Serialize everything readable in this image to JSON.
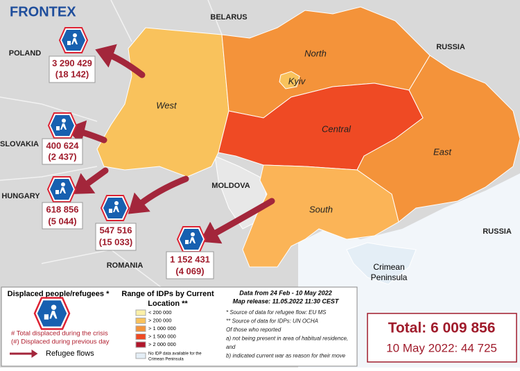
{
  "header": {
    "logo": "FRONTEX"
  },
  "countries": [
    "BELARUS",
    "RUSSIA",
    "POLAND",
    "SLOVAKIA",
    "HUNGARY",
    "MOLDOVA",
    "ROMANIA",
    "RUSSIA"
  ],
  "regions": [
    "North",
    "Kyiv",
    "West",
    "Central",
    "East",
    "South"
  ],
  "crimea": [
    "Crimean",
    "Peninsula"
  ],
  "flows": [
    {
      "total": "3 290 429",
      "previous": "(18 142)"
    },
    {
      "total": "400 624",
      "previous": "(2 437)"
    },
    {
      "total": "618 856",
      "previous": "(5 044)"
    },
    {
      "total": "547 516",
      "previous": "(15 033)"
    },
    {
      "total": "1 152 431",
      "previous": "(4 069)"
    }
  ],
  "legend": {
    "title": "Displaced people/refugees *",
    "total_note": "# Total displaced during the crisis",
    "previous_note": "(#) Displaced during previous day",
    "flows": "Refugee flows"
  },
  "idp_legend": {
    "title": [
      "Range of IDPs by Current",
      "Location **"
    ],
    "items": [
      {
        "label": "< 200 000",
        "color": "#fbf0a8"
      },
      {
        "label": "> 200 000",
        "color": "#f9c25c"
      },
      {
        "label": "> 1 000 000",
        "color": "#f4933a"
      },
      {
        "label": "> 1 500 000",
        "color": "#ef4a24"
      },
      {
        "label": "> 2 000 000",
        "color": "#b0152a"
      }
    ],
    "no_data": [
      "No IDP data available for the",
      "Crimean Peninsula"
    ]
  },
  "sources": {
    "period": "Data from 24 Feb - 10 May 2022",
    "release": "Map release: 11.05.2022 11:30 CEST",
    "notes": [
      "* Source of data for refugee flow: EU MS",
      "** Source of data for IDPs:  UN OCHA",
      "Of those who reported",
      "a) not being present in area of habitual residence,",
      "and",
      "b) indicated current war as reason for their move"
    ]
  },
  "total": {
    "total": "Total: 6 009 856",
    "day": "10 May 2022: 44 725"
  }
}
